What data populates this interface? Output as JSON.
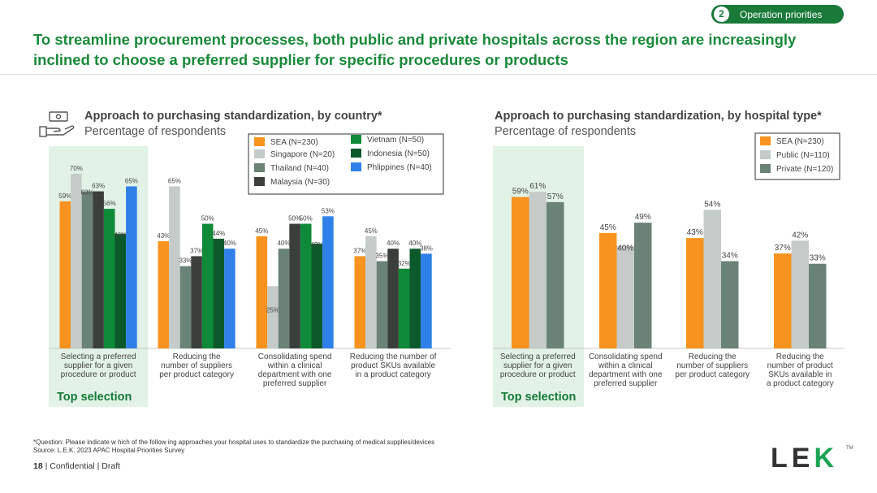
{
  "badge": {
    "number": "2",
    "label": "Operation priorities"
  },
  "headline": "To streamline procurement processes, both public and private hospitals across the region are increasingly inclined to choose a preferred supplier for specific procedures or products",
  "colors": {
    "SEA": "#f7931e",
    "Singapore": "#c5cbc8",
    "Thailand": "#6b8276",
    "Malaysia": "#3b3f3c",
    "Vietnam": "#0f8a38",
    "Indonesia": "#0c5a2c",
    "Philippines": "#2f80e8",
    "Public": "#c5cbc8",
    "Private": "#6b8276",
    "highlight": "#e2f2e6"
  },
  "chart_data": [
    {
      "type": "bar",
      "title": "Approach to purchasing standardization, by country*",
      "subtitle": "Percentage of respondents",
      "categories": [
        "Selecting a preferred supplier for a given procedure or product",
        "Reducing the number of suppliers per product category",
        "Consolidating spend within a clinical department with one preferred supplier",
        "Reducing the number of product SKUs available in a product category"
      ],
      "series": [
        {
          "name": "SEA (N=230)",
          "values": [
            59,
            43,
            45,
            37
          ]
        },
        {
          "name": "Singapore (N=20)",
          "values": [
            70,
            65,
            25,
            45
          ]
        },
        {
          "name": "Thailand (N=40)",
          "values": [
            63,
            33,
            40,
            35
          ]
        },
        {
          "name": "Malaysia (N=30)",
          "values": [
            63,
            37,
            50,
            40
          ]
        },
        {
          "name": "Vietnam (N=50)",
          "values": [
            56,
            50,
            50,
            32
          ]
        },
        {
          "name": "Indonesia (N=50)",
          "values": [
            46,
            44,
            42,
            40
          ]
        },
        {
          "name": "Phlippines (N=40)",
          "values": [
            65,
            40,
            53,
            38
          ]
        }
      ],
      "ylim": [
        0,
        100
      ],
      "highlight_label": "Top selection"
    },
    {
      "type": "bar",
      "title": "Approach to purchasing standardization, by hospital type*",
      "subtitle": "Percentage of respondents",
      "categories": [
        "Selecting a preferred supplier for a given procedure or product",
        "Consolidating spend within a clinical department with one preferred supplier",
        "Reducing the number of suppliers per product category",
        "Reducing the number of product SKUs available in a product category"
      ],
      "series": [
        {
          "name": "SEA (N=230)",
          "values": [
            59,
            45,
            43,
            37
          ]
        },
        {
          "name": "Public (N=110)",
          "values": [
            61,
            40,
            54,
            42
          ]
        },
        {
          "name": "Private (N=120)",
          "values": [
            57,
            49,
            34,
            33
          ]
        }
      ],
      "ylim": [
        0,
        100
      ],
      "highlight_label": "Top selection"
    }
  ],
  "cat_labels_left": [
    [
      "Selecting a preferred",
      "supplier for a given",
      "procedure or product"
    ],
    [
      "Reducing the",
      "number of suppliers",
      "per product category"
    ],
    [
      "Consolidating spend",
      "within a clinical",
      "department with one",
      "preferred supplier"
    ],
    [
      "Reducing the number of",
      "product SKUs available",
      "in a product category"
    ]
  ],
  "cat_labels_right": [
    [
      "Selecting a preferred",
      "supplier for a given",
      "procedure or product"
    ],
    [
      "Consolidating spend",
      "within a clinical",
      "department with one",
      "preferred supplier"
    ],
    [
      "Reducing the",
      "number of suppliers",
      "per product category"
    ],
    [
      "Reducing the",
      "number of product",
      "SKUs available in",
      "a product category"
    ]
  ],
  "footnote": {
    "question": "*Question: Please indicate w hich of the follow ing approaches your hospital uses to standardize the purchasing of medical supplies/devices",
    "source": "Source: L.E.K. 2023 APAC Hospital Priorities Survey"
  },
  "page": {
    "number": "18",
    "text": "| Confidential | Draft"
  },
  "logo": {
    "text_a": "LE",
    "text_b": "K",
    "tm": "TM"
  }
}
